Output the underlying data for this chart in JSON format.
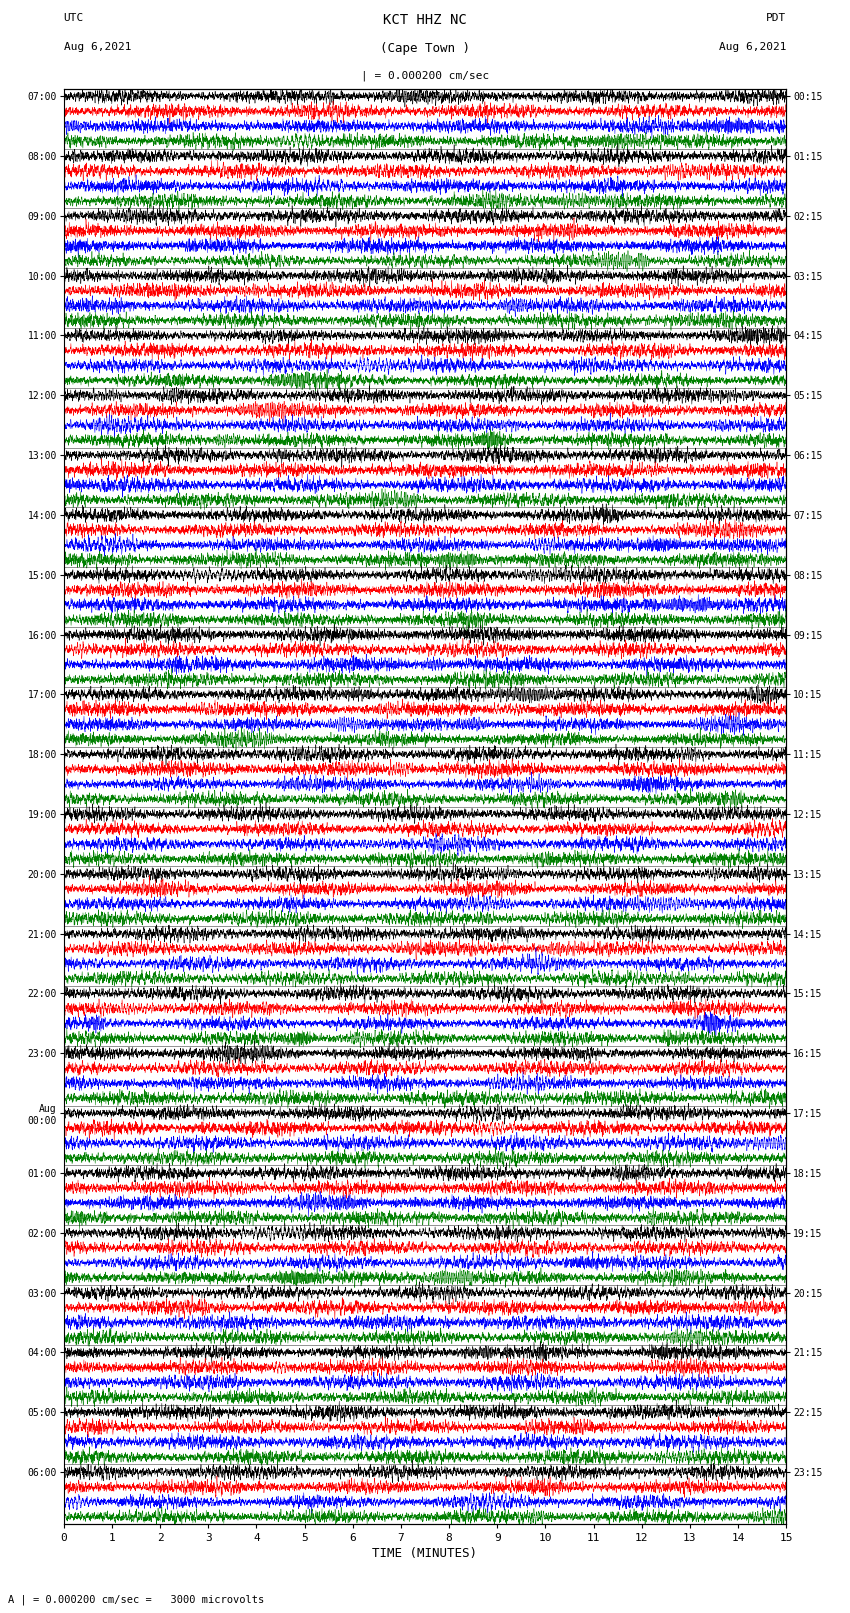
{
  "title_line1": "KCT HHZ NC",
  "title_line2": "(Cape Town )",
  "title_scale": "| = 0.000200 cm/sec",
  "left_label_top": "UTC",
  "left_label_date": "Aug 6,2021",
  "right_label_top": "PDT",
  "right_label_date": "Aug 6,2021",
  "bottom_label": "TIME (MINUTES)",
  "bottom_note": "A | = 0.000200 cm/sec =   3000 microvolts",
  "utc_times": [
    "07:00",
    "08:00",
    "09:00",
    "10:00",
    "11:00",
    "12:00",
    "13:00",
    "14:00",
    "15:00",
    "16:00",
    "17:00",
    "18:00",
    "19:00",
    "20:00",
    "21:00",
    "22:00",
    "23:00",
    "Aug\n00:00",
    "01:00",
    "02:00",
    "03:00",
    "04:00",
    "05:00",
    "06:00"
  ],
  "pdt_times": [
    "00:15",
    "01:15",
    "02:15",
    "03:15",
    "04:15",
    "05:15",
    "06:15",
    "07:15",
    "08:15",
    "09:15",
    "10:15",
    "11:15",
    "12:15",
    "13:15",
    "14:15",
    "15:15",
    "16:15",
    "17:15",
    "18:15",
    "19:15",
    "20:15",
    "21:15",
    "22:15",
    "23:15"
  ],
  "colors": [
    "black",
    "red",
    "blue",
    "green"
  ],
  "n_rows": 24,
  "traces_per_row": 4,
  "x_ticks": [
    0,
    1,
    2,
    3,
    4,
    5,
    6,
    7,
    8,
    9,
    10,
    11,
    12,
    13,
    14,
    15
  ],
  "fig_width": 8.5,
  "fig_height": 16.13,
  "bg_color": "white",
  "signal_seed": 42
}
